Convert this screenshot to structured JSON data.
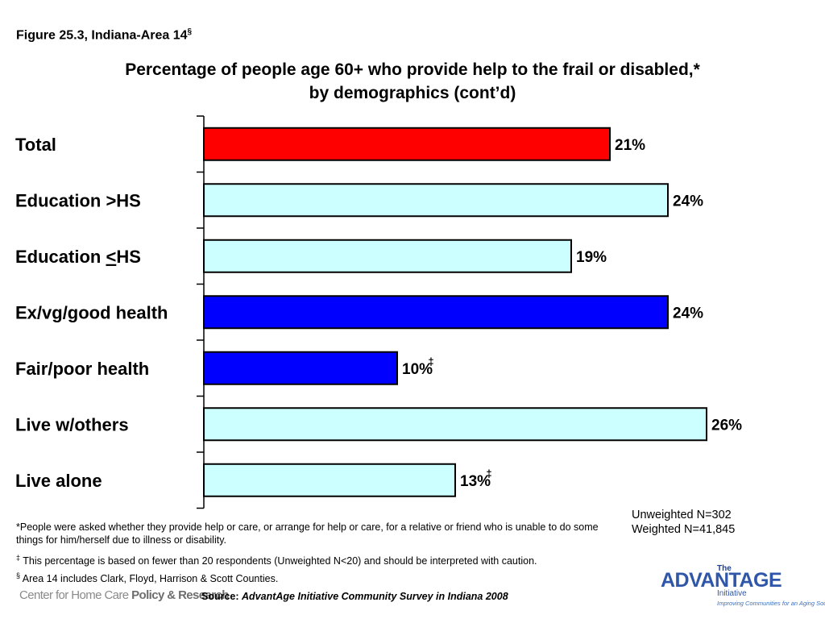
{
  "figure_label": "Figure 25.3, Indiana-Area 14",
  "figure_label_mark": "§",
  "chart_data": {
    "type": "bar",
    "orientation": "horizontal",
    "title": "Percentage of people age 60+ who provide help to the frail or disabled,* by demographics (cont’d)",
    "title_line1": "Percentage of people age 60+ who provide help to the frail or disabled,*",
    "title_line2": "by demographics (cont’d)",
    "categories": [
      "Total",
      "Education >HS",
      "Education <HS",
      "Ex/vg/good health",
      "Fair/poor health",
      "Live w/others",
      "Live alone"
    ],
    "values": [
      21,
      24,
      19,
      24,
      10,
      26,
      13
    ],
    "value_labels": [
      "21%",
      "24%",
      "19%",
      "24%",
      "10%",
      "26%",
      "13%"
    ],
    "markers": [
      "",
      "",
      "",
      "",
      "‡",
      "",
      "‡"
    ],
    "colors": [
      "#ff0000",
      "#ccffff",
      "#ccffff",
      "#0000ff",
      "#0000ff",
      "#ccffff",
      "#ccffff"
    ],
    "xlim": [
      0,
      28.5
    ],
    "gridlines": false,
    "legend": false
  },
  "footnotes": {
    "asterisk_note": "*People were asked whether they provide help or care, or arrange for help or care, for a relative or friend who is unable to do some things for him/herself due to illness or disability.",
    "double_dagger_mark": "‡",
    "double_dagger_note": " This percentage is based on fewer than 20 respondents (Unweighted N<20) and should be interpreted with caution.",
    "section_mark": "§",
    "section_note": " Area 14 includes Clark, Floyd, Harrison & Scott Counties."
  },
  "sample": {
    "unweighted": "Unweighted N=302",
    "weighted": "Weighted N=41,845"
  },
  "source": {
    "label": "Source: ",
    "text": "AdvantAge Initiative Community Survey in Indiana 2008"
  },
  "branding": {
    "left_logo_plain": "Center for Home Care ",
    "left_logo_bold": "Policy & Research",
    "right_logo_the": "The",
    "right_logo_name": "ADVANTAGE",
    "right_logo_initiative": "Initiative",
    "right_logo_tagline": "Improving Communities for an Aging Society"
  }
}
